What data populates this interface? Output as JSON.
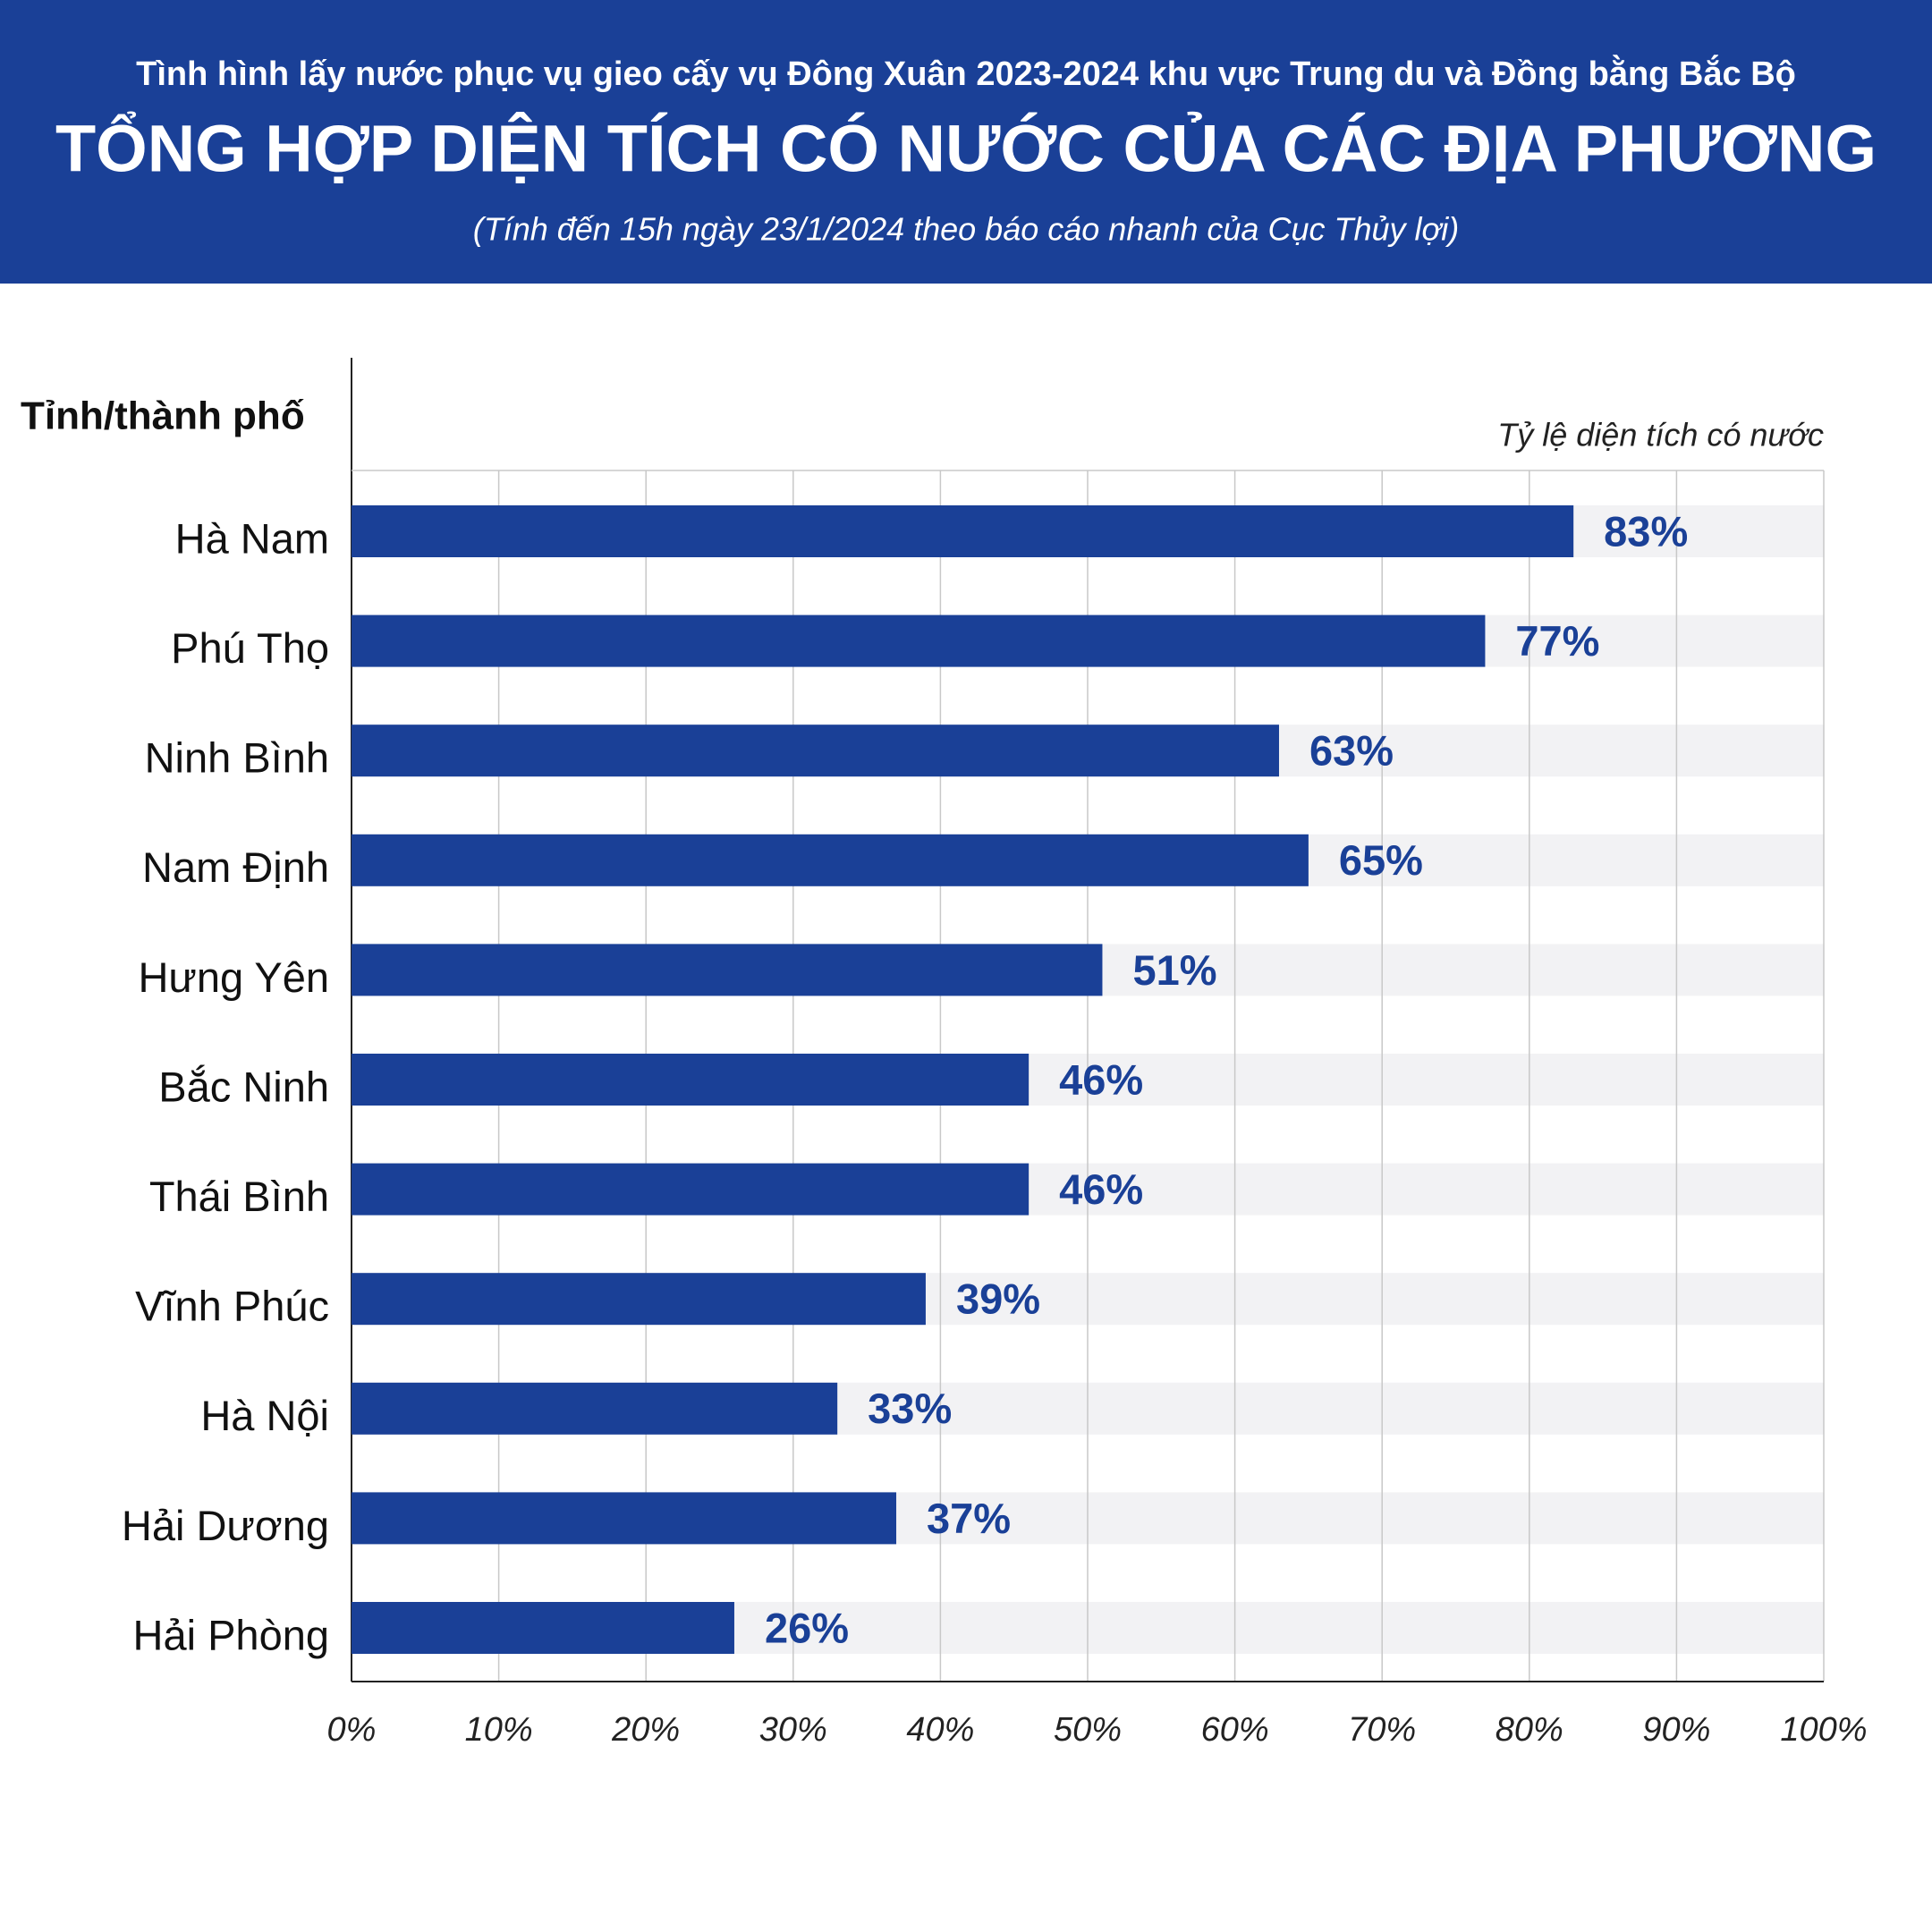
{
  "header": {
    "supertitle": "Tình hình lấy nước phục vụ gieo cấy vụ Đông Xuân 2023-2024 khu vực Trung du và Đồng bằng Bắc Bộ"
  },
  "chart_data": {
    "type": "bar",
    "orientation": "horizontal",
    "title": "TỔNG HỢP DIỆN TÍCH CÓ NƯỚC CỦA CÁC ĐỊA PHƯƠNG",
    "subtitle": "(Tính đến 15h ngày 23/1/2024 theo báo cáo nhanh của Cục Thủy lợi)",
    "y_label": "Tỉnh/thành phố",
    "x_label": "Tỷ lệ diện tích có nước",
    "categories": [
      "Hà Nam",
      "Phú Thọ",
      "Ninh Bình",
      "Nam Định",
      "Hưng Yên",
      "Bắc Ninh",
      "Thái Bình",
      "Vĩnh Phúc",
      "Hà Nội",
      "Hải Dương",
      "Hải Phòng"
    ],
    "values": [
      83,
      77,
      63,
      65,
      51,
      46,
      46,
      39,
      33,
      37,
      26
    ],
    "value_labels": [
      "83%",
      "77%",
      "63%",
      "65%",
      "51%",
      "46%",
      "46%",
      "39%",
      "33%",
      "37%",
      "26%"
    ],
    "color": "#1a4097",
    "xlim": [
      0,
      100
    ],
    "xticks": [
      {
        "value": 0,
        "label": "0%"
      },
      {
        "value": 10,
        "label": "10%"
      },
      {
        "value": 20,
        "label": "20%"
      },
      {
        "value": 30,
        "label": "30%"
      },
      {
        "value": 40,
        "label": "40%"
      },
      {
        "value": 50,
        "label": "50%"
      },
      {
        "value": 60,
        "label": "60%"
      },
      {
        "value": 70,
        "label": "70%"
      },
      {
        "value": 80,
        "label": "80%"
      },
      {
        "value": 90,
        "label": "90%"
      },
      {
        "value": 100,
        "label": "100%"
      }
    ],
    "grid": true
  }
}
